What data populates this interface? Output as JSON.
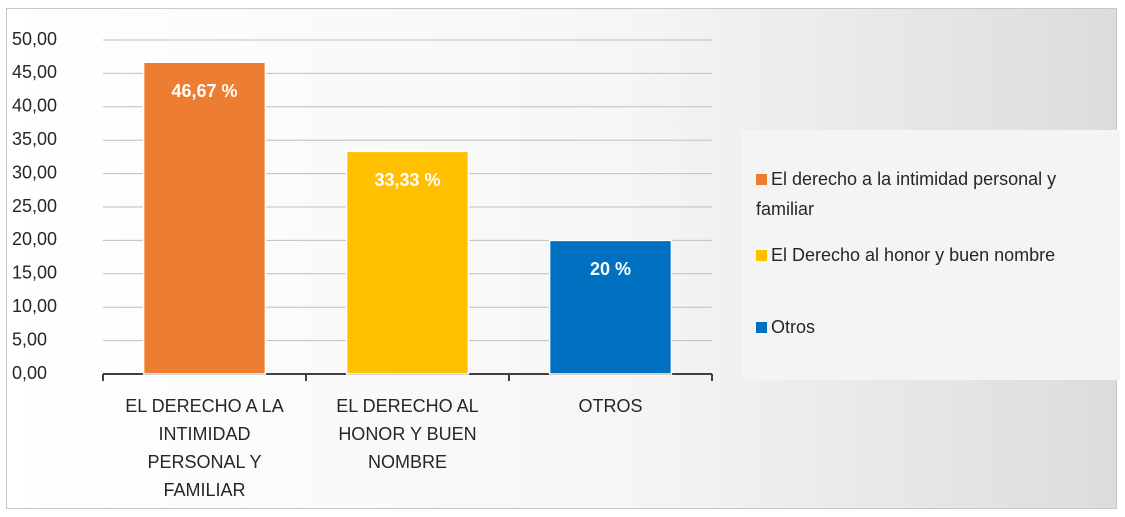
{
  "chart_data": {
    "type": "bar",
    "categories": [
      "EL DERECHO A LA INTIMIDAD PERSONAL Y FAMILIAR",
      "EL DERECHO AL HONOR Y BUEN NOMBRE",
      "OTROS"
    ],
    "values": [
      46.67,
      33.33,
      20
    ],
    "value_labels": [
      "46,67 %",
      "33,33 %",
      "20 %"
    ],
    "colors": [
      "#ed7d31",
      "#ffc000",
      "#0070c0"
    ],
    "legend": [
      "El derecho a la intimidad personal y familiar",
      "El Derecho al honor y buen nombre",
      "Otros"
    ],
    "ylim": [
      0,
      50
    ],
    "yticks": [
      {
        "value": 0,
        "label": "0,00"
      },
      {
        "value": 5,
        "label": "5,00"
      },
      {
        "value": 10,
        "label": "10,00"
      },
      {
        "value": 15,
        "label": "15,00"
      },
      {
        "value": 20,
        "label": "20,00"
      },
      {
        "value": 25,
        "label": "25,00"
      },
      {
        "value": 30,
        "label": "30,00"
      },
      {
        "value": 35,
        "label": "35,00"
      },
      {
        "value": 40,
        "label": "40,00"
      },
      {
        "value": 45,
        "label": "45,00"
      },
      {
        "value": 50,
        "label": "50,00"
      }
    ],
    "grid": true
  }
}
